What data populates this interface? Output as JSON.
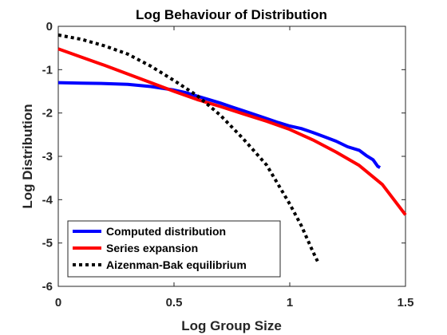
{
  "chart_data": {
    "type": "line",
    "title": "Log Behaviour of Distribution",
    "xlabel": "Log Group Size",
    "ylabel": "Log Distribution",
    "xlim": [
      0,
      1.5
    ],
    "ylim": [
      -6,
      0
    ],
    "xticks": [
      0,
      0.5,
      1,
      1.5
    ],
    "xtick_labels": [
      "0",
      "0.5",
      "1",
      "1.5"
    ],
    "yticks": [
      0,
      -1,
      -2,
      -3,
      -4,
      -5,
      -6
    ],
    "ytick_labels": [
      "0",
      "-1",
      "-2",
      "-3",
      "-4",
      "-5",
      "-6"
    ],
    "grid": false,
    "legend_position": "bottom-left",
    "series": [
      {
        "name": "Computed distribution",
        "color": "#0000ff",
        "style": "solid",
        "x": [
          0,
          0.1,
          0.2,
          0.3,
          0.4,
          0.5,
          0.55,
          0.6,
          0.65,
          0.7,
          0.75,
          0.8,
          0.85,
          0.9,
          0.95,
          1.0,
          1.05,
          1.1,
          1.15,
          1.2,
          1.25,
          1.3,
          1.33,
          1.36,
          1.38,
          1.39
        ],
        "y": [
          -1.3,
          -1.31,
          -1.32,
          -1.34,
          -1.39,
          -1.47,
          -1.53,
          -1.61,
          -1.69,
          -1.77,
          -1.86,
          -1.95,
          -2.04,
          -2.13,
          -2.22,
          -2.3,
          -2.36,
          -2.45,
          -2.55,
          -2.65,
          -2.78,
          -2.86,
          -2.98,
          -3.08,
          -3.23,
          -3.26
        ]
      },
      {
        "name": "Series expansion",
        "color": "#ff0000",
        "style": "solid",
        "x": [
          0,
          0.1,
          0.2,
          0.3,
          0.4,
          0.5,
          0.6,
          0.7,
          0.8,
          0.9,
          1.0,
          1.1,
          1.2,
          1.3,
          1.4,
          1.5
        ],
        "y": [
          -0.52,
          -0.71,
          -0.9,
          -1.1,
          -1.3,
          -1.5,
          -1.69,
          -1.85,
          -2.02,
          -2.19,
          -2.38,
          -2.62,
          -2.9,
          -3.21,
          -3.65,
          -4.35
        ]
      },
      {
        "name": "Aizenman-Bak equilibrium",
        "color": "#000000",
        "style": "dotted",
        "x": [
          0,
          0.1,
          0.2,
          0.3,
          0.4,
          0.5,
          0.6,
          0.7,
          0.8,
          0.9,
          1.0,
          1.05,
          1.1,
          1.12
        ],
        "y": [
          -0.2,
          -0.3,
          -0.45,
          -0.64,
          -0.92,
          -1.25,
          -1.6,
          -2.05,
          -2.6,
          -3.2,
          -4.1,
          -4.6,
          -5.2,
          -5.42
        ]
      }
    ]
  }
}
